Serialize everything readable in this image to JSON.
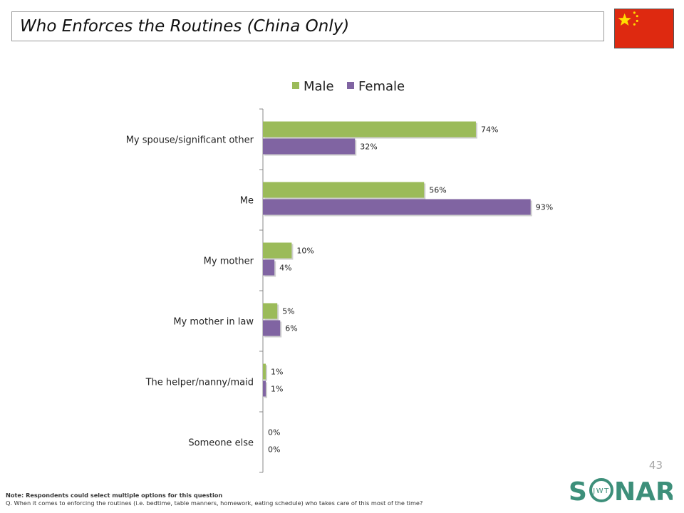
{
  "header": {
    "title": "Who Enforces the Routines (China Only)",
    "flag_icon": "china-flag-icon"
  },
  "chart_data": {
    "type": "bar",
    "orientation": "horizontal",
    "title": "",
    "xlabel": "",
    "ylabel": "",
    "xlim": [
      0,
      100
    ],
    "legend_position": "top",
    "grid": false,
    "categories": [
      "My spouse/significant other",
      "Me",
      "My mother",
      "My mother in law",
      "The helper/nanny/maid",
      "Someone else"
    ],
    "series": [
      {
        "name": "Male",
        "color": "#9bbb59",
        "values": [
          74,
          56,
          10,
          5,
          1,
          0
        ],
        "labels": [
          "74%",
          "56%",
          "10%",
          "5%",
          "1%",
          "0%"
        ]
      },
      {
        "name": "Female",
        "color": "#8064a2",
        "values": [
          32,
          93,
          4,
          6,
          1,
          0
        ],
        "labels": [
          "32%",
          "93%",
          "4%",
          "6%",
          "1%",
          "0%"
        ]
      }
    ]
  },
  "footer": {
    "page_number": "43",
    "logo_text": "SONAR",
    "logo_sub": "JWT",
    "note": "Note: Respondents could select multiple options for this question",
    "question": "Q. When it comes to enforcing the routines (i.e. bedtime, table manners, homework, eating schedule) who takes care of this most of the time?"
  }
}
